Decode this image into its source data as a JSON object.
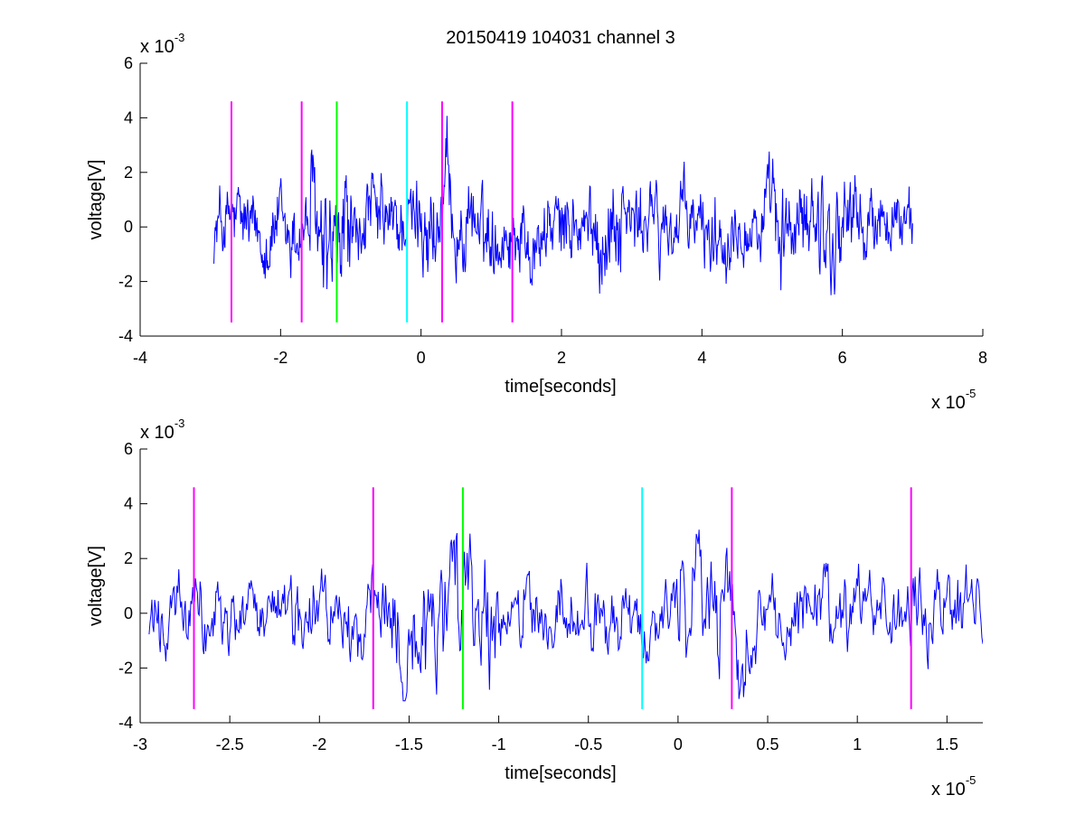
{
  "title": "20150419 104031 channel 3",
  "colors": {
    "signal": "#0000ff",
    "magenta": "#ff00ff",
    "green": "#00ff00",
    "cyan": "#00ffff",
    "axis": "#000000"
  },
  "chart_data": [
    {
      "type": "line",
      "title": "20150419 104031 channel 3",
      "xlabel": "time[seconds]",
      "ylabel": "voltage[V]",
      "xlim": [
        -4,
        8
      ],
      "ylim": [
        -4,
        6
      ],
      "x_ticks": [
        "-4",
        "-2",
        "0",
        "2",
        "4",
        "6",
        "8"
      ],
      "y_ticks": [
        "-4",
        "-2",
        "0",
        "2",
        "4",
        "6"
      ],
      "x_exponent": {
        "base": "x 10",
        "power": "-5"
      },
      "y_exponent": {
        "base": "x 10",
        "power": "-3"
      },
      "series": [
        {
          "x_range": [
            -2.95,
            7.0
          ]
        }
      ],
      "markers": [
        {
          "x": -2.7,
          "color": "magenta",
          "y_range": [
            -3.5,
            4.6
          ]
        },
        {
          "x": -1.7,
          "color": "magenta",
          "y_range": [
            -3.5,
            4.6
          ]
        },
        {
          "x": -1.2,
          "color": "green",
          "y_range": [
            -3.5,
            4.6
          ]
        },
        {
          "x": -0.2,
          "color": "cyan",
          "y_range": [
            -3.5,
            4.6
          ]
        },
        {
          "x": 0.3,
          "color": "magenta",
          "y_range": [
            -3.5,
            4.6
          ]
        },
        {
          "x": 1.3,
          "color": "magenta",
          "y_range": [
            -3.5,
            4.6
          ]
        }
      ]
    },
    {
      "type": "line",
      "xlabel": "time[seconds]",
      "ylabel": "voltage[V]",
      "xlim": [
        -3.0,
        1.7
      ],
      "ylim": [
        -4,
        6
      ],
      "x_ticks": [
        "-3",
        "-2.5",
        "-2",
        "-1.5",
        "-1",
        "-0.5",
        "0",
        "0.5",
        "1",
        "1.5"
      ],
      "y_ticks": [
        "-4",
        "-2",
        "0",
        "2",
        "4",
        "6"
      ],
      "x_exponent": {
        "base": "x 10",
        "power": "-5"
      },
      "y_exponent": {
        "base": "x 10",
        "power": "-3"
      },
      "series": [
        {
          "x_range": [
            -2.95,
            1.7
          ]
        }
      ],
      "markers": [
        {
          "x": -2.7,
          "color": "magenta",
          "y_range": [
            -3.5,
            4.6
          ]
        },
        {
          "x": -1.7,
          "color": "magenta",
          "y_range": [
            -3.5,
            4.6
          ]
        },
        {
          "x": -1.2,
          "color": "green",
          "y_range": [
            -3.5,
            4.6
          ]
        },
        {
          "x": -0.2,
          "color": "cyan",
          "y_range": [
            -3.5,
            4.6
          ]
        },
        {
          "x": 0.3,
          "color": "magenta",
          "y_range": [
            -3.5,
            4.6
          ]
        },
        {
          "x": 1.3,
          "color": "magenta",
          "y_range": [
            -3.5,
            4.6
          ]
        }
      ]
    }
  ]
}
